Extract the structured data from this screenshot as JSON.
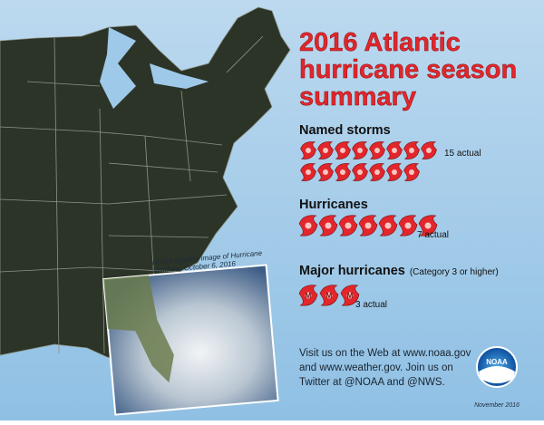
{
  "title_lines": [
    "2016 Atlantic",
    "hurricane season",
    "summary"
  ],
  "sections": [
    {
      "label": "Named storms",
      "count": 15,
      "count_label": "15 actual"
    },
    {
      "label": "Hurricanes",
      "count": 7,
      "count_label": "7 actual"
    },
    {
      "label": "Major hurricanes",
      "note": "(Category 3 or higher)",
      "count": 3,
      "count_label": "3 actual",
      "icon_letter": "M"
    }
  ],
  "image_caption": [
    "NOAA satellite image of Hurricane",
    "Matthew, October 6, 2016"
  ],
  "footer": [
    "Visit us on the Web at www.noaa.gov",
    "and www.weather.gov. Join us on",
    "Twitter at @NOAA and @NWS."
  ],
  "logo": "NOAA",
  "date": "November 2016"
}
